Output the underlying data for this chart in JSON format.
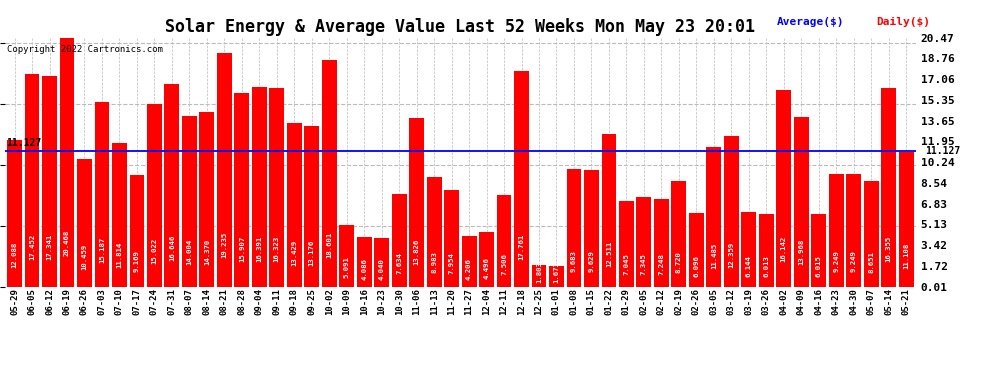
{
  "title": "Solar Energy & Average Value Last 52 Weeks Mon May 23 20:01",
  "copyright": "Copyright 2022 Cartronics.com",
  "legend_avg": "Average($)",
  "legend_daily": "Daily($)",
  "average_line": 11.127,
  "bar_color": "#ff0000",
  "avg_line_color": "#0000ff",
  "avg_label_color": "#0000ff",
  "daily_label_color": "#ff0000",
  "background_color": "#ffffff",
  "grid_color": "#bbbbbb",
  "ylim": [
    0.0,
    20.47
  ],
  "yticks": [
    0.01,
    1.72,
    3.42,
    5.13,
    6.83,
    8.54,
    10.24,
    11.95,
    13.65,
    15.35,
    17.06,
    18.76,
    20.47
  ],
  "categories": [
    "05-29",
    "06-05",
    "06-12",
    "06-19",
    "06-26",
    "07-03",
    "07-10",
    "07-17",
    "07-24",
    "07-31",
    "08-07",
    "08-14",
    "08-21",
    "08-28",
    "09-04",
    "09-11",
    "09-18",
    "09-25",
    "10-02",
    "10-09",
    "10-16",
    "10-23",
    "10-30",
    "11-06",
    "11-13",
    "11-20",
    "11-27",
    "12-04",
    "12-11",
    "12-18",
    "12-25",
    "01-01",
    "01-08",
    "01-15",
    "01-22",
    "01-29",
    "02-05",
    "02-12",
    "02-19",
    "02-26",
    "03-05",
    "03-12",
    "03-19",
    "03-26",
    "04-02",
    "04-09",
    "04-16",
    "04-23",
    "04-30",
    "05-07",
    "05-14",
    "05-21"
  ],
  "values": [
    12.088,
    17.452,
    17.341,
    20.468,
    10.459,
    15.187,
    11.814,
    9.169,
    15.022,
    16.646,
    14.004,
    14.37,
    19.235,
    15.907,
    16.391,
    16.323,
    13.429,
    13.176,
    18.601,
    5.091,
    4.086,
    4.04,
    7.634,
    13.826,
    8.983,
    7.954,
    4.206,
    4.496,
    7.506,
    17.761,
    1.803,
    1.673,
    9.683,
    9.629,
    12.511,
    7.045,
    7.345,
    7.248,
    8.72,
    6.096,
    11.485,
    12.359,
    6.144,
    6.013,
    16.142,
    13.968,
    6.015,
    9.249,
    9.249,
    8.651,
    16.355,
    11.108
  ],
  "bar_values_fontsize": 5.2,
  "xlabel_fontsize": 6.5,
  "ylabel_right_fontsize": 8,
  "title_fontsize": 12
}
